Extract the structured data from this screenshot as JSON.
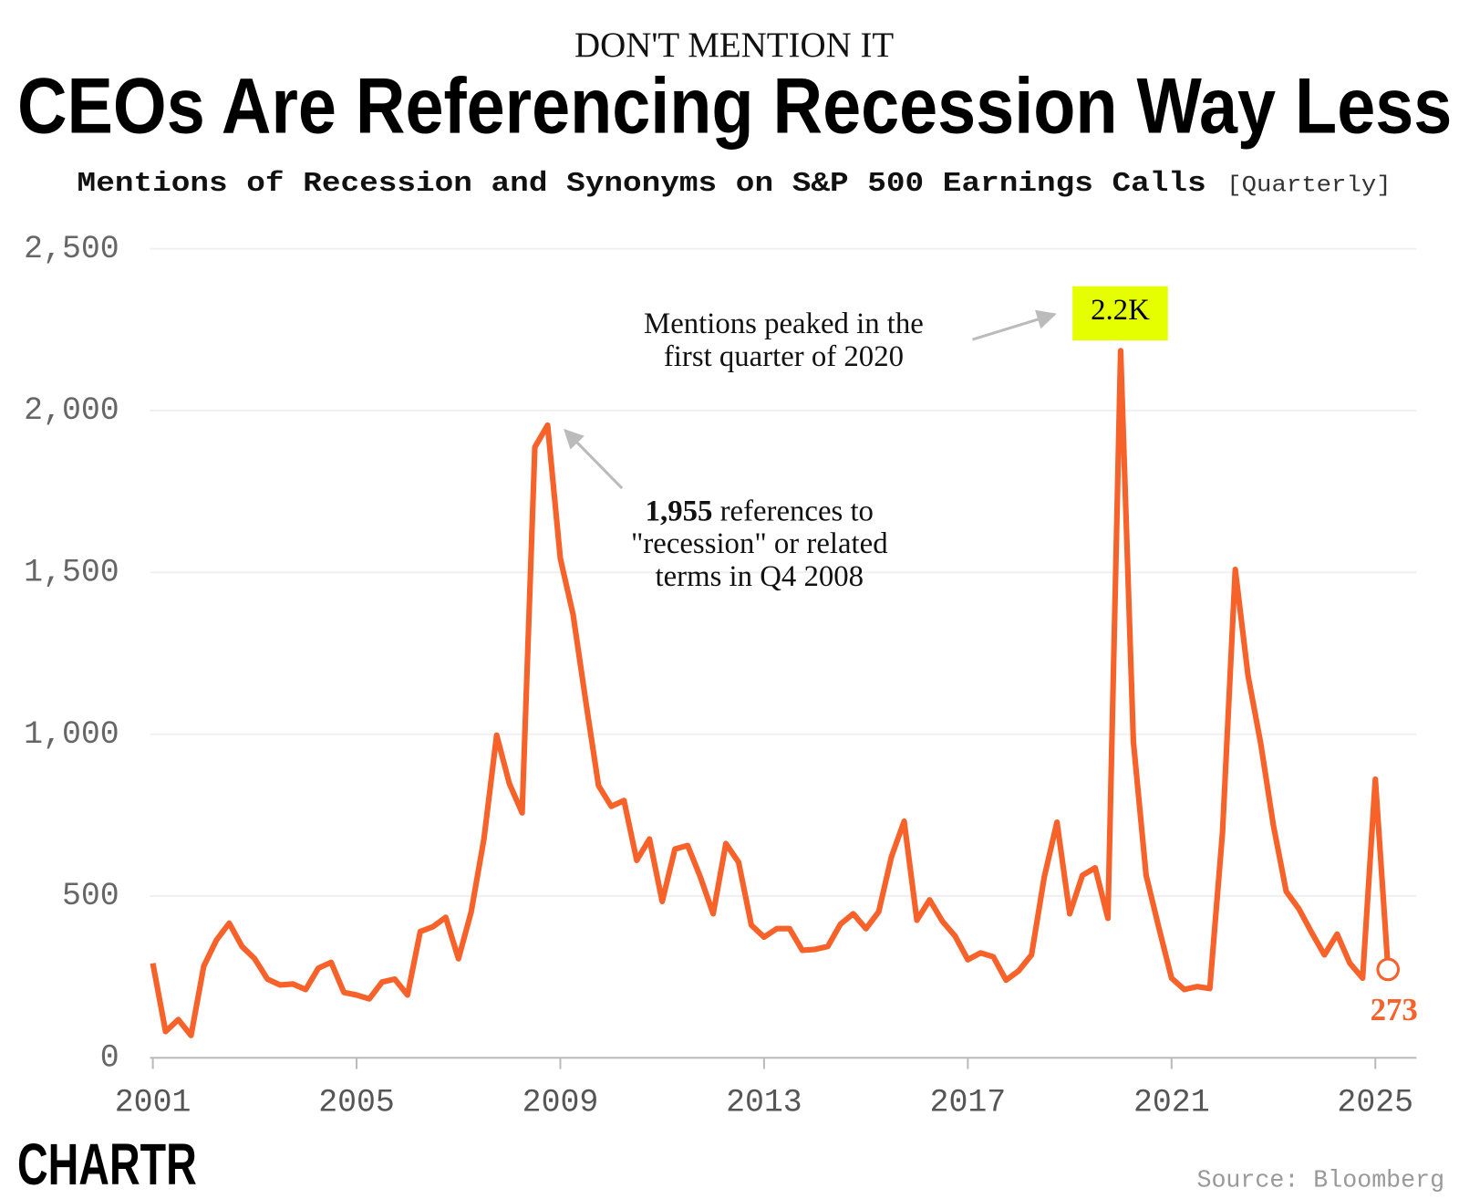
{
  "kicker": "DON'T MENTION IT",
  "chart_data": {
    "type": "line",
    "title": "CEOs Are Referencing Recession Way Less",
    "subtitle": "Mentions of Recession and Synonyms on S&P 500 Earnings Calls",
    "subtitle_note": "[Quarterly]",
    "x": [
      2001,
      2001.25,
      2001.5,
      2001.75,
      2002,
      2002.25,
      2002.5,
      2002.75,
      2003,
      2003.25,
      2003.5,
      2003.75,
      2004,
      2004.25,
      2004.5,
      2004.75,
      2005,
      2005.25,
      2005.5,
      2005.75,
      2006,
      2006.25,
      2006.5,
      2006.75,
      2007,
      2007.25,
      2007.5,
      2007.75,
      2008,
      2008.25,
      2008.5,
      2008.75,
      2009,
      2009.25,
      2009.5,
      2009.75,
      2010,
      2010.25,
      2010.5,
      2010.75,
      2011,
      2011.25,
      2011.5,
      2011.75,
      2012,
      2012.25,
      2012.5,
      2012.75,
      2013,
      2013.25,
      2013.5,
      2013.75,
      2014,
      2014.25,
      2014.5,
      2014.75,
      2015,
      2015.25,
      2015.5,
      2015.75,
      2016,
      2016.25,
      2016.5,
      2016.75,
      2017,
      2017.25,
      2017.5,
      2017.75,
      2018,
      2018.25,
      2018.5,
      2018.75,
      2019,
      2019.25,
      2019.5,
      2019.75,
      2020,
      2020.25,
      2020.5,
      2020.75,
      2021,
      2021.25,
      2021.5,
      2021.75,
      2022,
      2022.25,
      2022.5,
      2022.75,
      2023,
      2023.25,
      2023.5,
      2023.75,
      2024,
      2024.25,
      2024.5,
      2024.75,
      2025,
      2025.25
    ],
    "series": [
      {
        "name": "Mentions",
        "color": "#f7612a",
        "values": [
          292,
          81,
          118,
          69,
          283,
          364,
          416,
          344,
          306,
          243,
          225,
          228,
          211,
          277,
          295,
          202,
          194,
          182,
          234,
          243,
          194,
          390,
          405,
          434,
          306,
          451,
          676,
          997,
          847,
          757,
          1887,
          1955,
          1543,
          1370,
          1101,
          841,
          777,
          795,
          610,
          676,
          483,
          645,
          656,
          558,
          445,
          662,
          604,
          410,
          373,
          399,
          399,
          332,
          335,
          344,
          413,
          445,
          399,
          451,
          621,
          731,
          425,
          488,
          422,
          376,
          303,
          324,
          312,
          240,
          269,
          318,
          558,
          728,
          445,
          564,
          587,
          431,
          2185,
          977,
          564,
          402,
          246,
          211,
          220,
          214,
          697,
          1509,
          1182,
          971,
          717,
          514,
          460,
          387,
          318,
          382,
          292,
          246,
          861,
          273
        ]
      }
    ],
    "xlim": [
      2000.95,
      2025.8
    ],
    "xticks": [
      2001,
      2005,
      2009,
      2013,
      2017,
      2021,
      2025
    ],
    "ylim": [
      0,
      2500
    ],
    "yticks": [
      0,
      500,
      {
        "value": 1000,
        "label": "1,000"
      },
      {
        "value": 1500,
        "label": "1,500"
      },
      {
        "value": 2000,
        "label": "2,000"
      },
      {
        "value": 2500,
        "label": "2,500"
      }
    ],
    "grid": true,
    "annotations": [
      {
        "lines": [
          "Mentions peaked in the",
          "first quarter of 2020"
        ],
        "label": "2.2K"
      },
      {
        "bold": "1,955",
        "lines": [
          " references to",
          "\"recession\" or related",
          "terms in Q4 2008"
        ]
      },
      {
        "label": "273"
      }
    ],
    "source": "Source: Bloomberg"
  },
  "logo": "CHARTR"
}
